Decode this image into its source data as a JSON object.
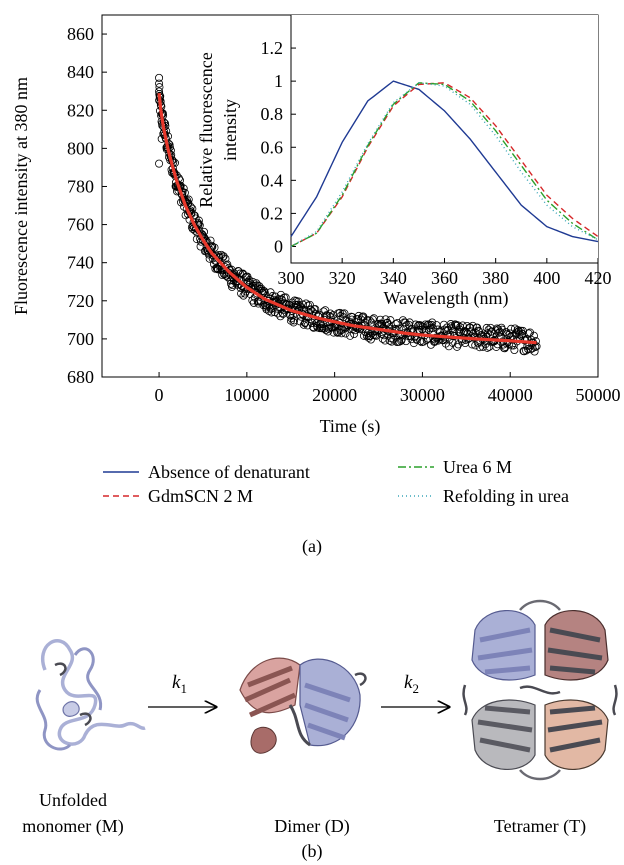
{
  "chart_data": [
    {
      "type": "scatter",
      "xlabel": "Time (s)",
      "ylabel": "Fluorescence intensity at 380 nm",
      "xlim": [
        -6500,
        50000
      ],
      "ylim": [
        680,
        870
      ],
      "xticks": [
        0,
        10000,
        20000,
        30000,
        40000,
        50000
      ],
      "yticks": [
        680,
        700,
        720,
        740,
        760,
        780,
        800,
        820,
        840,
        860
      ],
      "grid": false,
      "data_points": {
        "x": [
          0,
          200,
          500,
          1000,
          1500,
          2000,
          3000,
          4000,
          5000,
          6000,
          8000,
          10000,
          12000,
          15000,
          18000,
          20000,
          22000,
          25000,
          28000,
          30000,
          33000,
          36000,
          40000,
          43000
        ],
        "y": [
          828,
          820,
          812,
          801,
          792,
          784,
          771,
          761,
          752,
          745,
          734,
          727,
          721,
          715,
          711,
          709,
          707,
          705,
          704,
          703,
          702,
          701,
          700,
          699
        ]
      },
      "fit_line": {
        "x": [
          0,
          200,
          500,
          1000,
          1500,
          2000,
          3000,
          4000,
          5000,
          6000,
          8000,
          10000,
          12000,
          15000,
          18000,
          20000,
          22000,
          25000,
          28000,
          30000,
          33000,
          36000,
          40000,
          43000
        ],
        "y": [
          829,
          820,
          811,
          800,
          791,
          783,
          770,
          760,
          752,
          745,
          735,
          727,
          721,
          715,
          711,
          709,
          707,
          705,
          703,
          702,
          701,
          700,
          699,
          698
        ]
      },
      "colors": {
        "markers": "#000000",
        "fit": "#e8382b"
      }
    },
    {
      "type": "line",
      "xlabel": "Wavelength (nm)",
      "ylabel_lines": [
        "Relative fluorescence",
        "intensity"
      ],
      "xlim": [
        300,
        420
      ],
      "ylim": [
        -0.1,
        1.4
      ],
      "xticks": [
        300,
        320,
        340,
        360,
        380,
        400,
        420
      ],
      "yticks": [
        0,
        0.2,
        0.4,
        0.6,
        0.8,
        1,
        1.2
      ],
      "grid": false,
      "x": [
        300,
        310,
        320,
        330,
        340,
        350,
        360,
        370,
        380,
        390,
        400,
        410,
        420
      ],
      "series": [
        {
          "name": "Absence of denaturant",
          "color": "#1f3a93",
          "dash": "",
          "values": [
            0.06,
            0.3,
            0.63,
            0.88,
            1.0,
            0.95,
            0.82,
            0.65,
            0.45,
            0.25,
            0.12,
            0.06,
            0.03
          ]
        },
        {
          "name": "GdmSCN 2 M",
          "color": "#d62728",
          "dash": "6 4",
          "values": [
            0.0,
            0.08,
            0.3,
            0.6,
            0.85,
            0.98,
            0.99,
            0.9,
            0.73,
            0.52,
            0.31,
            0.17,
            0.06
          ]
        },
        {
          "name": "Urea 6 M",
          "color": "#2ca02c",
          "dash": "8 3 2 3",
          "values": [
            0.0,
            0.08,
            0.31,
            0.61,
            0.86,
            0.99,
            0.98,
            0.88,
            0.7,
            0.49,
            0.28,
            0.14,
            0.04
          ]
        },
        {
          "name": "Refolding in urea",
          "color": "#3aa6b9",
          "dash": "1 3",
          "values": [
            0.0,
            0.09,
            0.33,
            0.62,
            0.87,
            0.99,
            0.97,
            0.86,
            0.67,
            0.45,
            0.25,
            0.12,
            0.04
          ]
        }
      ]
    }
  ],
  "legend": {
    "items": [
      {
        "label": "Absence of denaturant",
        "color": "#1f3a93",
        "dash": ""
      },
      {
        "label": "GdmSCN 2 M",
        "color": "#d62728",
        "dash": "6 4"
      },
      {
        "label": "Urea 6 M",
        "color": "#2ca02c",
        "dash": "8 3 2 3"
      },
      {
        "label": "Refolding in urea",
        "color": "#3aa6b9",
        "dash": "1 3"
      }
    ]
  },
  "panel_a_label": "(a)",
  "panel_b_label": "(b)",
  "scheme": {
    "k1_base": "k",
    "k1_sub": "1",
    "k2_base": "k",
    "k2_sub": "2",
    "monomer_label_line1": "Unfolded",
    "monomer_label_line2": "monomer (M)",
    "dimer_label": "Dimer (D)",
    "tetramer_label": "Tetramer (T)"
  },
  "colors": {
    "ribbon_lavender": "#aab0d6",
    "ribbon_pink": "#d9a3a0",
    "ribbon_dark": "#4a4a52",
    "ribbon_gray": "#b9b9bd",
    "ribbon_peach": "#e2b8a4"
  }
}
